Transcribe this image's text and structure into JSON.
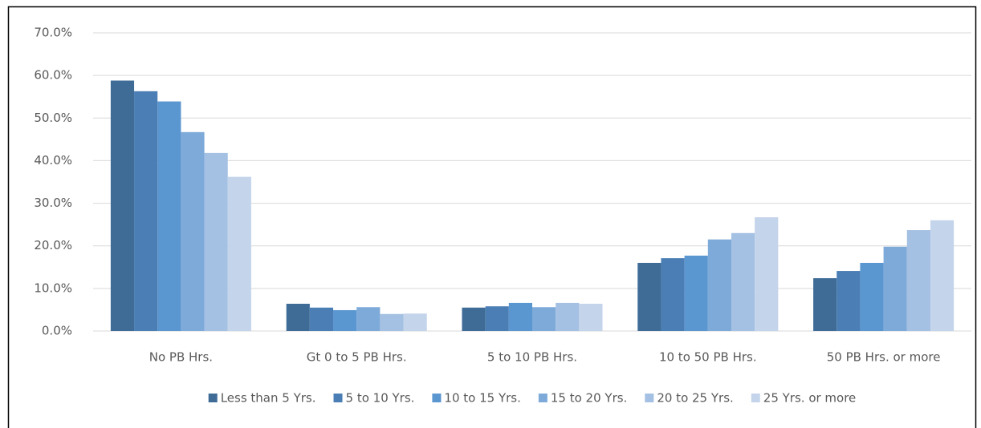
{
  "chart_data": {
    "type": "bar",
    "categories": [
      "No PB Hrs.",
      "Gt 0 to 5 PB Hrs.",
      "5 to 10 PB Hrs.",
      "10 to 50 PB Hrs.",
      "50 PB Hrs. or more"
    ],
    "series": [
      {
        "name": "Less than 5 Yrs.",
        "color": "#3f6c97",
        "values": [
          58.8,
          6.4,
          5.5,
          16.0,
          12.4
        ]
      },
      {
        "name": "5 to 10 Yrs.",
        "color": "#4a7eb4",
        "values": [
          56.3,
          5.5,
          5.8,
          17.1,
          14.1
        ]
      },
      {
        "name": "10 to 15 Yrs.",
        "color": "#5a96cf",
        "values": [
          53.9,
          4.9,
          6.6,
          17.7,
          16.0
        ]
      },
      {
        "name": "15 to 20 Yrs.",
        "color": "#7eaad9",
        "values": [
          46.7,
          5.6,
          5.6,
          21.5,
          19.8
        ]
      },
      {
        "name": "20 to 25 Yrs.",
        "color": "#a4c0e3",
        "values": [
          41.8,
          4.0,
          6.6,
          23.0,
          23.7
        ]
      },
      {
        "name": "25 Yrs. or more",
        "color": "#c4d4eb",
        "values": [
          36.2,
          4.1,
          6.4,
          26.7,
          26.0
        ]
      }
    ],
    "ylim": [
      0,
      70
    ],
    "yticks": [
      {
        "value": 0,
        "label": "0.0%"
      },
      {
        "value": 10,
        "label": "10.0%"
      },
      {
        "value": 20,
        "label": "20.0%"
      },
      {
        "value": 30,
        "label": "30.0%"
      },
      {
        "value": 40,
        "label": "40.0%"
      },
      {
        "value": 50,
        "label": "50.0%"
      },
      {
        "value": 60,
        "label": "60.0%"
      },
      {
        "value": 70,
        "label": "70.0%"
      }
    ],
    "grid": true,
    "legend": "bottom"
  }
}
